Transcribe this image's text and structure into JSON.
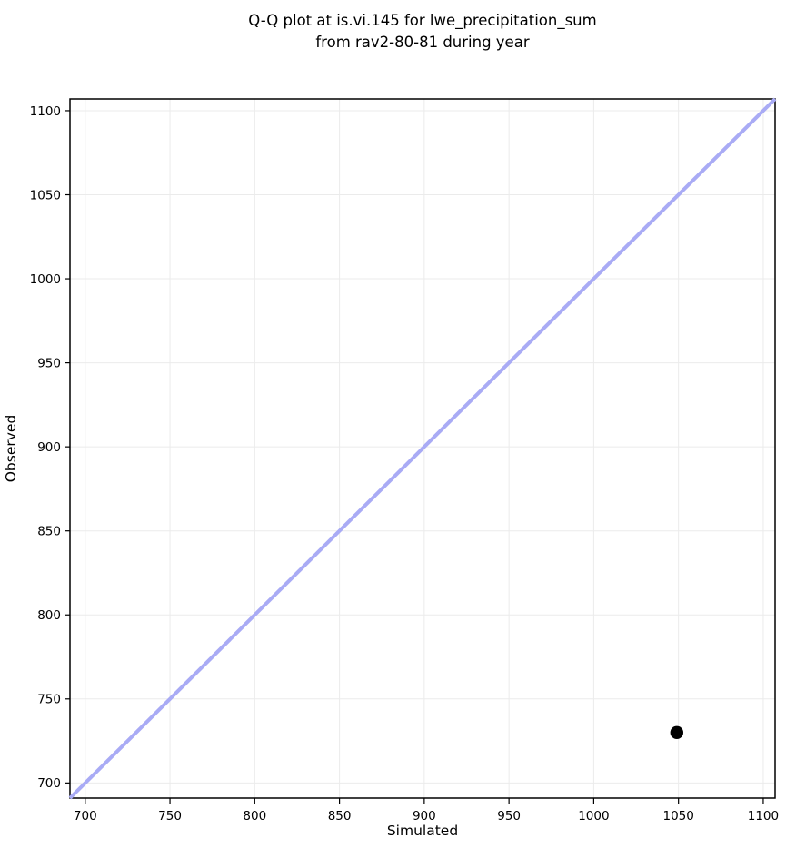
{
  "figure": {
    "title_line1": "Q-Q plot at is.vi.145 for lwe_precipitation_sum",
    "title_line2": "from rav2-80-81 during year"
  },
  "chart_data": {
    "type": "scatter",
    "title": "Q-Q plot at is.vi.145 for lwe_precipitation_sum",
    "subtitle": "from rav2-80-81 during year",
    "xlabel": "Simulated",
    "ylabel": "Observed",
    "xlim": [
      691,
      1107
    ],
    "ylim": [
      691,
      1107
    ],
    "xticks": [
      700,
      750,
      800,
      850,
      900,
      950,
      1000,
      1050,
      1100
    ],
    "yticks": [
      700,
      750,
      800,
      850,
      900,
      950,
      1000,
      1050,
      1100
    ],
    "grid": true,
    "grid_color": "#ebebeb",
    "axis_color": "#000000",
    "identity_line": {
      "x": [
        691,
        1107
      ],
      "y": [
        691,
        1107
      ],
      "color": "#a9abf5",
      "width": 4
    },
    "points": [
      {
        "simulated": 1049,
        "observed": 730
      }
    ],
    "point_color": "#000000",
    "point_radius": 7.2
  }
}
